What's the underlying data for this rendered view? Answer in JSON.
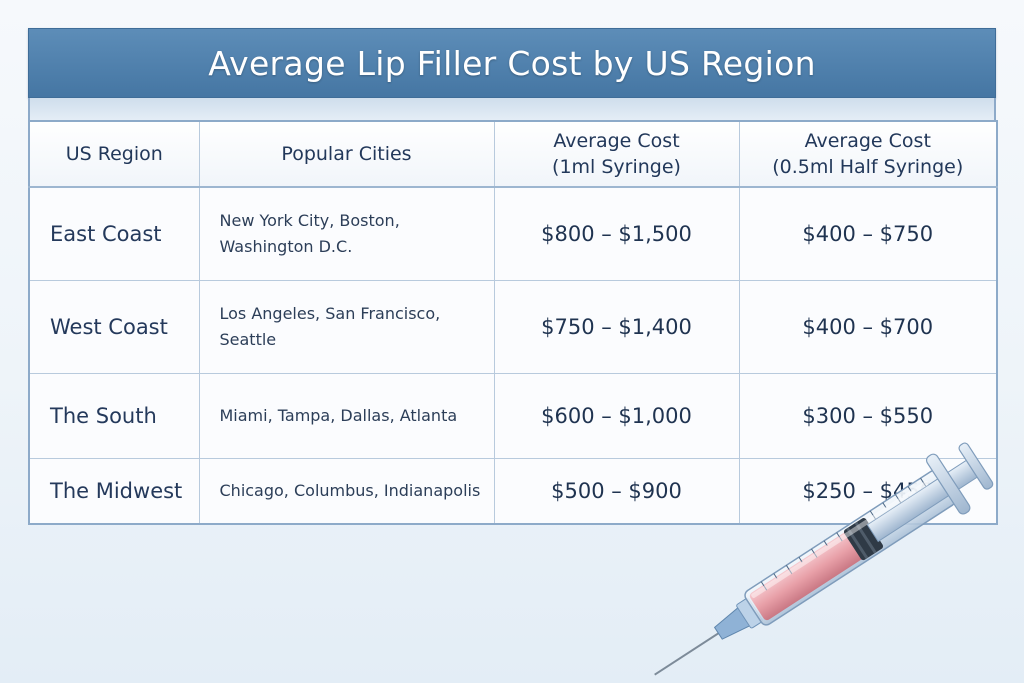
{
  "title": "Average Lip Filler Cost by US Region",
  "table": {
    "headers": {
      "region": "US Region",
      "cities": "Popular Cities",
      "cost1_line1": "Average Cost",
      "cost1_line2": "(1ml Syringe)",
      "cost2_line1": "Average Cost",
      "cost2_line2": "(0.5ml Half Syringe)"
    },
    "rows": [
      {
        "region": "East Coast",
        "cities": "New York City, Boston, Washington D.C.",
        "cost_1ml": "$800 – $1,500",
        "cost_half": "$400 – $750"
      },
      {
        "region": "West Coast",
        "cities": "Los Angeles, San Francisco, Seattle",
        "cost_1ml": "$750 – $1,400",
        "cost_half": "$400 – $700"
      },
      {
        "region": "The South",
        "cities": "Miami, Tampa, Dallas, Atlanta",
        "cost_1ml": "$600 – $1,000",
        "cost_half": "$300 – $550"
      },
      {
        "region": "The Midwest",
        "cities": "Chicago, Columbus, Indianapolis",
        "cost_1ml": "$500 – $900",
        "cost_half": "$250 – $450"
      }
    ]
  },
  "colors": {
    "title_bar": "#4f80ad",
    "table_border": "#8daac9",
    "text": "#1f3552",
    "filler": "#e8a0a8"
  },
  "icons": {
    "illustration": "syringe-icon"
  }
}
